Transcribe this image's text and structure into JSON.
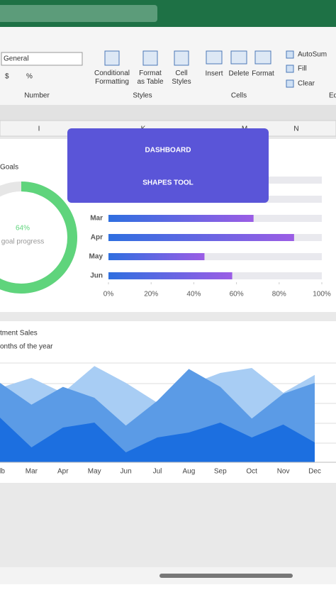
{
  "ribbon": {
    "number_format": "General",
    "number_symbols": [
      "$",
      "%"
    ],
    "groups": [
      "Number",
      "Styles",
      "Cells"
    ],
    "styles_buttons": [
      "Conditional Formatting",
      "Format as Table",
      "Cell Styles"
    ],
    "cells_buttons": [
      "Insert",
      "Delete",
      "Format"
    ],
    "editing_buttons": [
      "AutoSum",
      "Fill",
      "Clear"
    ],
    "editing_group": "Edi"
  },
  "columns": [
    "I",
    "K",
    "M",
    "N"
  ],
  "overlay": {
    "lines": [
      "DASHBOARD",
      "SHAPES TOOL"
    ]
  },
  "chart_data": [
    {
      "type": "donut",
      "title": "Goals",
      "values": [
        64
      ],
      "value_labels": [
        "64%"
      ],
      "subtitle": "goal progress",
      "color": "#5fd47c",
      "track_color": "#e6e6e6"
    },
    {
      "type": "hbar",
      "categories": [
        "Mar",
        "Apr",
        "May",
        "Jun"
      ],
      "values": [
        68,
        87,
        45,
        58
      ],
      "xlim": [
        0,
        100
      ],
      "xticks": [
        {
          "value": 0,
          "label": "0%"
        },
        {
          "value": 20,
          "label": "20%"
        },
        {
          "value": 40,
          "label": "40%"
        },
        {
          "value": 60,
          "label": "60%"
        },
        {
          "value": 80,
          "label": "80%"
        },
        {
          "value": 100,
          "label": "100%"
        }
      ],
      "gradient": [
        "#2f6fe0",
        "#9b5de5"
      ],
      "track_color": "#e9e9ee"
    },
    {
      "type": "area",
      "title": "tment Sales",
      "subtitle": "onths of the year",
      "categories": [
        "lb",
        "Mar",
        "Apr",
        "May",
        "Jun",
        "Jul",
        "Aug",
        "Sep",
        "Oct",
        "Nov",
        "Dec"
      ],
      "ylim": [
        0,
        100
      ],
      "series": [
        {
          "color": "#a8cdf4",
          "values": [
            75,
            85,
            70,
            97,
            80,
            60,
            78,
            90,
            95,
            70,
            88
          ]
        },
        {
          "color": "#5b9be6",
          "values": [
            80,
            58,
            76,
            65,
            37,
            62,
            94,
            76,
            44,
            69,
            80
          ]
        },
        {
          "color": "#1c6fe0",
          "values": [
            45,
            15,
            35,
            40,
            10,
            25,
            30,
            40,
            25,
            38,
            20
          ]
        }
      ]
    }
  ]
}
